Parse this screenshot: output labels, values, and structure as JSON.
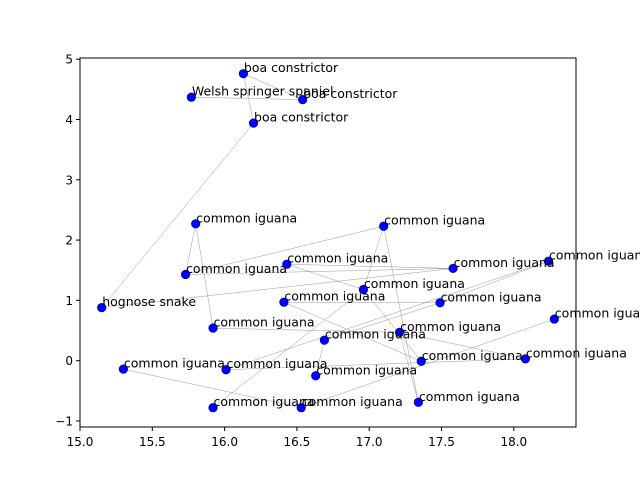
{
  "colors": {
    "marker": "#0000ff",
    "marker_edge": "#00008b",
    "edge": "#808080",
    "text": "#000000",
    "axis": "#000000",
    "background": "#ffffff"
  },
  "chart_data": {
    "type": "scatter",
    "title": "",
    "xlabel": "",
    "ylabel": "",
    "xlim": [
      15.0,
      18.43
    ],
    "ylim": [
      -1.1,
      5.02
    ],
    "xticks": [
      15.0,
      15.5,
      16.0,
      16.5,
      17.0,
      17.5,
      18.0
    ],
    "yticks": [
      -1,
      0,
      1,
      2,
      3,
      4,
      5
    ],
    "xtick_labels": [
      "15.0",
      "15.5",
      "16.0",
      "16.5",
      "17.0",
      "17.5",
      "18.0"
    ],
    "ytick_labels": [
      "−1",
      "0",
      "1",
      "2",
      "3",
      "4",
      "5"
    ],
    "grid": false,
    "legend": "none",
    "nodes": [
      {
        "label": "boa constrictor",
        "x": 16.13,
        "y": 4.76
      },
      {
        "label": "Welsh springer spaniel",
        "x": 15.77,
        "y": 4.37
      },
      {
        "label": "boa constrictor",
        "x": 16.54,
        "y": 4.33
      },
      {
        "label": "boa constrictor",
        "x": 16.2,
        "y": 3.94
      },
      {
        "label": "common iguana",
        "x": 15.8,
        "y": 2.27
      },
      {
        "label": "common iguana",
        "x": 17.1,
        "y": 2.23
      },
      {
        "label": "common iguana",
        "x": 18.24,
        "y": 1.65
      },
      {
        "label": "common iguana",
        "x": 16.43,
        "y": 1.6
      },
      {
        "label": "common iguana",
        "x": 17.58,
        "y": 1.53
      },
      {
        "label": "common iguana",
        "x": 15.73,
        "y": 1.43
      },
      {
        "label": "common iguana",
        "x": 16.96,
        "y": 1.18
      },
      {
        "label": "common iguana",
        "x": 16.41,
        "y": 0.97
      },
      {
        "label": "common iguana",
        "x": 17.49,
        "y": 0.96
      },
      {
        "label": "hognose snake",
        "x": 15.15,
        "y": 0.88
      },
      {
        "label": "common iguana",
        "x": 18.28,
        "y": 0.69
      },
      {
        "label": "common iguana",
        "x": 15.92,
        "y": 0.54
      },
      {
        "label": "common iguana",
        "x": 17.21,
        "y": 0.47
      },
      {
        "label": "common iguana",
        "x": 16.69,
        "y": 0.34
      },
      {
        "label": "common iguana",
        "x": 18.08,
        "y": 0.03
      },
      {
        "label": "common iguana",
        "x": 17.36,
        "y": -0.01
      },
      {
        "label": "common iguana",
        "x": 15.3,
        "y": -0.14
      },
      {
        "label": "common iguana",
        "x": 16.01,
        "y": -0.15
      },
      {
        "label": "common iguana",
        "x": 16.63,
        "y": -0.25
      },
      {
        "label": "common iguana",
        "x": 17.34,
        "y": -0.69
      },
      {
        "label": "common iguana",
        "x": 15.92,
        "y": -0.78
      },
      {
        "label": "common iguana",
        "x": 16.53,
        "y": -0.78
      }
    ],
    "edges": [
      [
        0,
        2
      ],
      [
        0,
        3
      ],
      [
        1,
        2
      ],
      [
        3,
        13
      ],
      [
        4,
        9
      ],
      [
        4,
        15
      ],
      [
        9,
        5
      ],
      [
        9,
        8
      ],
      [
        7,
        8
      ],
      [
        7,
        10
      ],
      [
        13,
        8
      ],
      [
        5,
        10
      ],
      [
        5,
        23
      ],
      [
        10,
        24
      ],
      [
        10,
        19
      ],
      [
        6,
        12
      ],
      [
        6,
        21
      ],
      [
        14,
        25
      ],
      [
        11,
        19
      ],
      [
        11,
        12
      ],
      [
        12,
        17
      ],
      [
        15,
        16
      ],
      [
        16,
        18
      ],
      [
        16,
        23
      ],
      [
        17,
        22
      ],
      [
        20,
        25
      ],
      [
        21,
        18
      ]
    ]
  }
}
